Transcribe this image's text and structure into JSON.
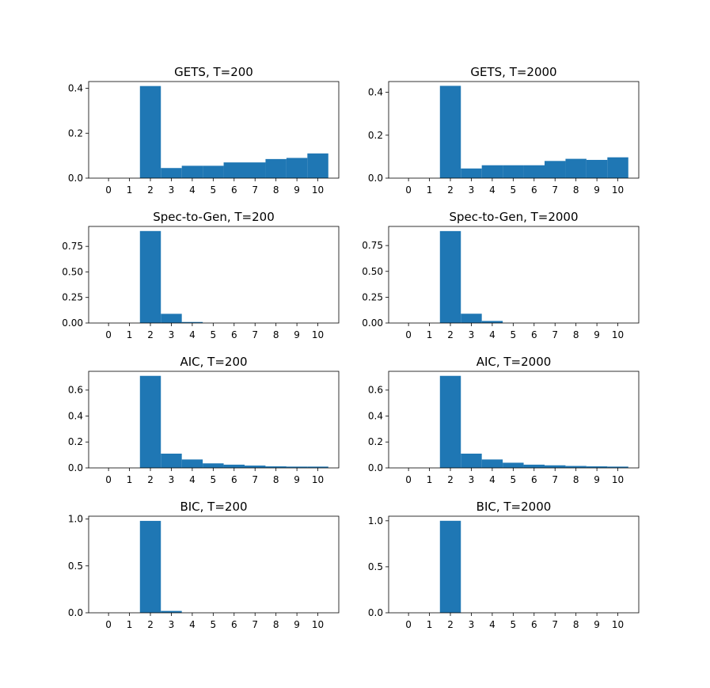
{
  "chart_data": [
    {
      "type": "bar",
      "title": "GETS, T=200",
      "categories": [
        0,
        1,
        2,
        3,
        4,
        5,
        6,
        7,
        8,
        9,
        10
      ],
      "values": [
        0,
        0,
        0.41,
        0.045,
        0.055,
        0.055,
        0.07,
        0.07,
        0.085,
        0.09,
        0.11
      ],
      "ylim": [
        0,
        0.43
      ],
      "yticks": [
        0.0,
        0.2,
        0.4
      ],
      "ytick_labels": [
        "0.0",
        "0.2",
        "0.4"
      ],
      "xticks": [
        "0",
        "1",
        "2",
        "3",
        "4",
        "5",
        "6",
        "7",
        "8",
        "9",
        "10"
      ],
      "color": "#1f77b4"
    },
    {
      "type": "bar",
      "title": "GETS, T=2000",
      "categories": [
        0,
        1,
        2,
        3,
        4,
        5,
        6,
        7,
        8,
        9,
        10
      ],
      "values": [
        0,
        0,
        0.43,
        0.045,
        0.06,
        0.06,
        0.06,
        0.08,
        0.09,
        0.085,
        0.097
      ],
      "ylim": [
        0,
        0.45
      ],
      "yticks": [
        0.0,
        0.2,
        0.4
      ],
      "ytick_labels": [
        "0.0",
        "0.2",
        "0.4"
      ],
      "xticks": [
        "0",
        "1",
        "2",
        "3",
        "4",
        "5",
        "6",
        "7",
        "8",
        "9",
        "10"
      ],
      "color": "#1f77b4"
    },
    {
      "type": "bar",
      "title": "Spec-to-Gen, T=200",
      "categories": [
        0,
        1,
        2,
        3,
        4,
        5,
        6,
        7,
        8,
        9,
        10
      ],
      "values": [
        0,
        0,
        0.9,
        0.09,
        0.01,
        0,
        0,
        0,
        0,
        0,
        0
      ],
      "ylim": [
        0,
        0.945
      ],
      "yticks": [
        0.0,
        0.25,
        0.5,
        0.75
      ],
      "ytick_labels": [
        "0.00",
        "0.25",
        "0.50",
        "0.75"
      ],
      "xticks": [
        "0",
        "1",
        "2",
        "3",
        "4",
        "5",
        "6",
        "7",
        "8",
        "9",
        "10"
      ],
      "color": "#1f77b4"
    },
    {
      "type": "bar",
      "title": "Spec-to-Gen, T=2000",
      "categories": [
        0,
        1,
        2,
        3,
        4,
        5,
        6,
        7,
        8,
        9,
        10
      ],
      "values": [
        0,
        0,
        0.89,
        0.09,
        0.02,
        0,
        0,
        0,
        0,
        0,
        0
      ],
      "ylim": [
        0,
        0.935
      ],
      "yticks": [
        0.0,
        0.25,
        0.5,
        0.75
      ],
      "ytick_labels": [
        "0.00",
        "0.25",
        "0.50",
        "0.75"
      ],
      "xticks": [
        "0",
        "1",
        "2",
        "3",
        "4",
        "5",
        "6",
        "7",
        "8",
        "9",
        "10"
      ],
      "color": "#1f77b4"
    },
    {
      "type": "bar",
      "title": "AIC, T=200",
      "categories": [
        0,
        1,
        2,
        3,
        4,
        5,
        6,
        7,
        8,
        9,
        10
      ],
      "values": [
        0,
        0,
        0.71,
        0.11,
        0.065,
        0.035,
        0.025,
        0.018,
        0.012,
        0.01,
        0.01
      ],
      "ylim": [
        0,
        0.745
      ],
      "yticks": [
        0.0,
        0.2,
        0.4,
        0.6
      ],
      "ytick_labels": [
        "0.0",
        "0.2",
        "0.4",
        "0.6"
      ],
      "xticks": [
        "0",
        "1",
        "2",
        "3",
        "4",
        "5",
        "6",
        "7",
        "8",
        "9",
        "10"
      ],
      "color": "#1f77b4"
    },
    {
      "type": "bar",
      "title": "AIC, T=2000",
      "categories": [
        0,
        1,
        2,
        3,
        4,
        5,
        6,
        7,
        8,
        9,
        10
      ],
      "values": [
        0,
        0,
        0.71,
        0.11,
        0.065,
        0.04,
        0.025,
        0.02,
        0.015,
        0.012,
        0.01
      ],
      "ylim": [
        0,
        0.745
      ],
      "yticks": [
        0.0,
        0.2,
        0.4,
        0.6
      ],
      "ytick_labels": [
        "0.0",
        "0.2",
        "0.4",
        "0.6"
      ],
      "xticks": [
        "0",
        "1",
        "2",
        "3",
        "4",
        "5",
        "6",
        "7",
        "8",
        "9",
        "10"
      ],
      "color": "#1f77b4"
    },
    {
      "type": "bar",
      "title": "BIC, T=200",
      "categories": [
        0,
        1,
        2,
        3,
        4,
        5,
        6,
        7,
        8,
        9,
        10
      ],
      "values": [
        0,
        0,
        0.98,
        0.02,
        0,
        0,
        0,
        0,
        0,
        0,
        0
      ],
      "ylim": [
        0,
        1.03
      ],
      "yticks": [
        0.0,
        0.5,
        1.0
      ],
      "ytick_labels": [
        "0.0",
        "0.5",
        "1.0"
      ],
      "xticks": [
        "0",
        "1",
        "2",
        "3",
        "4",
        "5",
        "6",
        "7",
        "8",
        "9",
        "10"
      ],
      "color": "#1f77b4"
    },
    {
      "type": "bar",
      "title": "BIC, T=2000",
      "categories": [
        0,
        1,
        2,
        3,
        4,
        5,
        6,
        7,
        8,
        9,
        10
      ],
      "values": [
        0,
        0,
        1.0,
        0,
        0,
        0,
        0,
        0,
        0,
        0,
        0
      ],
      "ylim": [
        0,
        1.05
      ],
      "yticks": [
        0.0,
        0.5,
        1.0
      ],
      "ytick_labels": [
        "0.0",
        "0.5",
        "1.0"
      ],
      "xticks": [
        "0",
        "1",
        "2",
        "3",
        "4",
        "5",
        "6",
        "7",
        "8",
        "9",
        "10"
      ],
      "color": "#1f77b4"
    }
  ]
}
